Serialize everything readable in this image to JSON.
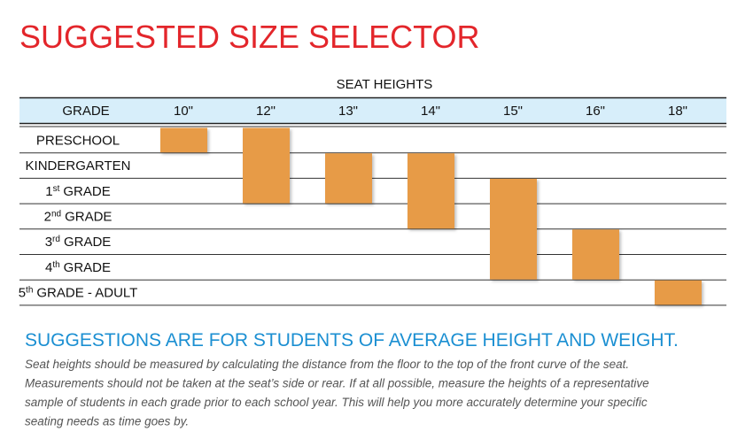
{
  "header": {
    "title": "SUGGESTED SIZE SELECTOR",
    "subtitle": "SEAT HEIGHTS"
  },
  "table": {
    "columns": [
      "GRADE",
      "10\"",
      "12\"",
      "13\"",
      "14\"",
      "15\"",
      "16\"",
      "18\""
    ],
    "rows": [
      {
        "label": "PRESCHOOL",
        "cells": [
          true,
          true,
          false,
          false,
          false,
          false,
          false
        ]
      },
      {
        "label": "KINDERGARTEN",
        "cells": [
          false,
          true,
          true,
          true,
          false,
          false,
          false
        ]
      },
      {
        "number": "1",
        "sup": "st",
        "label": "GRADE",
        "cells": [
          false,
          true,
          true,
          true,
          true,
          false,
          false
        ]
      },
      {
        "number": "2",
        "sup": "nd",
        "label": "GRADE",
        "cells": [
          false,
          false,
          false,
          true,
          true,
          false,
          false
        ]
      },
      {
        "number": "3",
        "sup": "rd",
        "label": "GRADE",
        "cells": [
          false,
          false,
          false,
          false,
          true,
          true,
          false
        ]
      },
      {
        "number": "4",
        "sup": "th",
        "label": "GRADE",
        "cells": [
          false,
          false,
          false,
          false,
          true,
          true,
          false
        ]
      },
      {
        "number": "5",
        "sup": "th",
        "label": "GRADE - ADULT",
        "cells": [
          false,
          false,
          false,
          false,
          false,
          false,
          true
        ]
      }
    ]
  },
  "note": {
    "heading": "SUGGESTIONS ARE FOR STUDENTS OF AVERAGE HEIGHT AND WEIGHT.",
    "lines": [
      "Seat heights should be measured by calculating the distance from the floor to the top of the front curve of the seat.",
      "Measurements should not be taken at the seat’s side or rear.  If at all possible, measure the heights of a representative",
      "sample of students in each grade prior to each school year.  This will help you more accurately determine your specific",
      "seating needs as time goes by."
    ]
  }
}
